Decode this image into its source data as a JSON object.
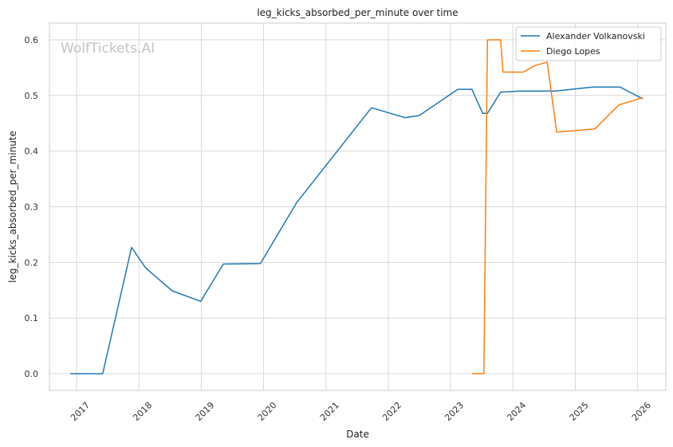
{
  "chart_data": {
    "type": "line",
    "title": "leg_kicks_absorbed_per_minute over time",
    "xlabel": "Date",
    "ylabel": "leg_kicks_absorbed_per_minute",
    "watermark": "WolfTickets.AI",
    "x_ticks": [
      "2017",
      "2018",
      "2019",
      "2020",
      "2021",
      "2022",
      "2023",
      "2024",
      "2025",
      "2026"
    ],
    "y_ticks": [
      "0.0",
      "0.1",
      "0.2",
      "0.3",
      "0.4",
      "0.5",
      "0.6"
    ],
    "xlim": [
      "2016-07-26",
      "2026-06-15"
    ],
    "ylim": [
      -0.03,
      0.63
    ],
    "grid": true,
    "legend_position": "top-right",
    "series": [
      {
        "name": "Alexander Volkanovski",
        "color": "#1f77b4",
        "points": [
          [
            "2016-11-26",
            0.0
          ],
          [
            "2017-06-03",
            0.0
          ],
          [
            "2017-11-19",
            0.227
          ],
          [
            "2018-02-10",
            0.19
          ],
          [
            "2018-07-15",
            0.149
          ],
          [
            "2018-12-29",
            0.13
          ],
          [
            "2019-05-11",
            0.197
          ],
          [
            "2019-12-14",
            0.198
          ],
          [
            "2020-07-12",
            0.307
          ],
          [
            "2021-09-25",
            0.478
          ],
          [
            "2022-04-09",
            0.46
          ],
          [
            "2022-07-02",
            0.464
          ],
          [
            "2023-02-12",
            0.511
          ],
          [
            "2023-05-06",
            0.511
          ],
          [
            "2023-07-08",
            0.468
          ],
          [
            "2023-08-05",
            0.468
          ],
          [
            "2023-10-21",
            0.506
          ],
          [
            "2024-02-17",
            0.508
          ],
          [
            "2024-09-07",
            0.508
          ],
          [
            "2025-04-12",
            0.515
          ],
          [
            "2025-09-20",
            0.515
          ],
          [
            "2026-01-31",
            0.494
          ]
        ]
      },
      {
        "name": "Diego Lopes",
        "color": "#ff7f0e",
        "points": [
          [
            "2023-05-06",
            0.0
          ],
          [
            "2023-07-15",
            0.0
          ],
          [
            "2023-08-05",
            0.6
          ],
          [
            "2023-10-21",
            0.6
          ],
          [
            "2023-11-04",
            0.542
          ],
          [
            "2024-03-02",
            0.542
          ],
          [
            "2024-05-04",
            0.553
          ],
          [
            "2024-07-20",
            0.56
          ],
          [
            "2024-09-14",
            0.434
          ],
          [
            "2025-04-26",
            0.44
          ],
          [
            "2025-09-13",
            0.483
          ],
          [
            "2026-01-31",
            0.496
          ]
        ]
      }
    ]
  }
}
